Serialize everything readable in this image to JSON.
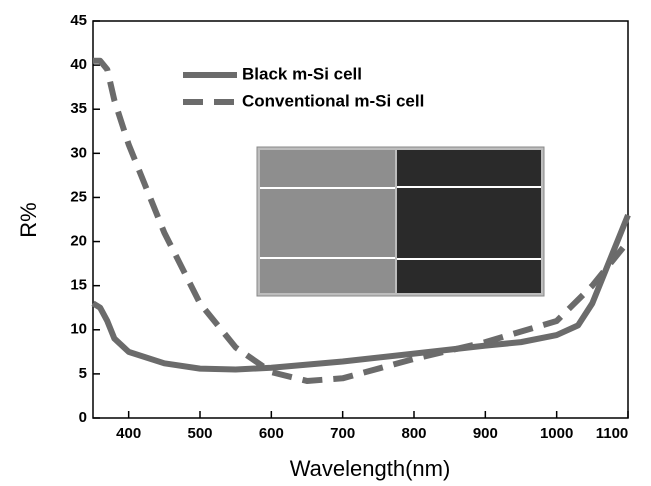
{
  "chart_data": {
    "type": "line",
    "x_label": "Wavelength(nm)",
    "y_label": "R%",
    "xlim": [
      350,
      1100
    ],
    "xticks": [
      400,
      500,
      600,
      700,
      800,
      900,
      1000,
      1100
    ],
    "ylim": [
      0,
      45
    ],
    "yticks": [
      0,
      5,
      10,
      15,
      20,
      25,
      30,
      35,
      40,
      45
    ],
    "grid": false,
    "series": [
      {
        "name": "Black m-Si cell",
        "color": "#6b6b6b",
        "dash": false,
        "x": [
          350,
          360,
          370,
          380,
          400,
          450,
          500,
          550,
          600,
          700,
          800,
          900,
          950,
          1000,
          1030,
          1050,
          1070,
          1100
        ],
        "values": [
          13,
          12.5,
          11,
          9,
          7.5,
          6.2,
          5.6,
          5.5,
          5.7,
          6.4,
          7.3,
          8.2,
          8.6,
          9.4,
          10.5,
          13,
          17,
          23
        ]
      },
      {
        "name": "Conventional m-Si cell",
        "color": "#6b6b6b",
        "dash": true,
        "x": [
          350,
          360,
          370,
          380,
          400,
          450,
          500,
          550,
          600,
          650,
          700,
          800,
          900,
          1000,
          1050,
          1080,
          1100
        ],
        "values": [
          40.5,
          40.5,
          39.5,
          36,
          31,
          21,
          13,
          8,
          5.2,
          4.2,
          4.5,
          6.7,
          8.6,
          11,
          15,
          18,
          20
        ]
      }
    ]
  }
}
